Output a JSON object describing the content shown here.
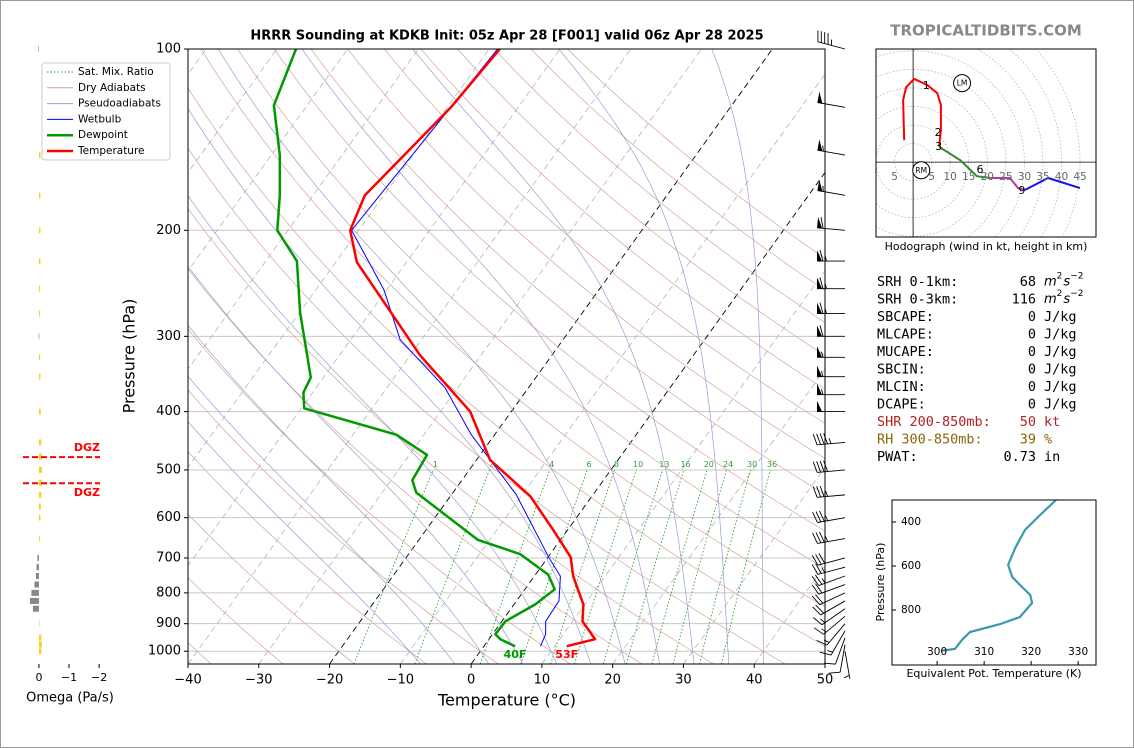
{
  "site": "TROPICALTIDBITS.COM",
  "chart_data": [
    {
      "type": "skewt",
      "title": "HRRR Sounding at KDKB Init: 05z Apr 28 [F001] valid 06z Apr 28 2025",
      "xlabel": "Temperature (°C)",
      "ylabel": "Pressure (hPa)",
      "xlim": [
        -40,
        50
      ],
      "ylim": [
        1050,
        100
      ],
      "log_y": true,
      "grid": true,
      "xticks": [
        {
          "value": -40,
          "label": "−40"
        },
        {
          "value": -30,
          "label": "−30"
        },
        {
          "value": -20,
          "label": "−20"
        },
        {
          "value": -10,
          "label": "−10"
        },
        0,
        10,
        20,
        30,
        40,
        50
      ],
      "yticks": [
        100,
        200,
        300,
        400,
        500,
        600,
        700,
        800,
        900,
        1000
      ],
      "isotherms": {
        "values": [
          -120,
          -110,
          -100,
          -90,
          -80,
          -70,
          -60,
          -50,
          -40,
          -30,
          -20,
          -10,
          0,
          10,
          20,
          30,
          40,
          50
        ],
        "highlight": [
          -20,
          0
        ],
        "color": "#aaaaaa",
        "highlight_color": "#000000"
      },
      "reference_lines": [
        {
          "name": "Sat. Mix. Ratio",
          "kind": "mixing_ratio",
          "color": "#2ca02c",
          "values": [
            1,
            2,
            4,
            6,
            8,
            10,
            13,
            16,
            20,
            24,
            30,
            36
          ]
        },
        {
          "name": "Dry Adiabats",
          "kind": "dry_adiabat",
          "color": "#d9a0a0",
          "values": [
            -40,
            -30,
            -20,
            -10,
            0,
            10,
            20,
            30,
            40,
            50,
            60,
            70,
            80,
            90,
            100,
            110,
            120,
            130,
            140,
            150,
            160
          ]
        },
        {
          "name": "Pseudoadiabats",
          "kind": "pseudoadiabat",
          "color": "#9b9bd6",
          "values": [
            -10,
            -5,
            0,
            5,
            10,
            15,
            20,
            25,
            30,
            35,
            40
          ]
        }
      ],
      "series": [
        {
          "name": "Wetbulb",
          "color": "#0000ff",
          "width": 1,
          "pressure": [
            981,
            937,
            892,
            825,
            751,
            698,
            549,
            437,
            365,
            304,
            251,
            200,
            100
          ],
          "values": [
            8.0,
            7.5,
            6.2,
            6.0,
            3.7,
            0.1,
            -10.9,
            -23.3,
            -31.8,
            -43.0,
            -50.4,
            -61.0,
            -58.8
          ]
        },
        {
          "name": "Dewpoint",
          "color": "#009a00",
          "width": 2.5,
          "pressure": [
            981,
            955,
            937,
            892,
            836,
            789,
            746,
            690,
            653,
            545,
            520,
            472,
            437,
            395,
            372,
            351,
            274,
            225,
            200,
            175,
            150,
            124,
            100
          ],
          "values": [
            4.4,
            1.6,
            0.4,
            0.5,
            3.0,
            4.2,
            1.8,
            -4.2,
            -11.7,
            -25.2,
            -27.0,
            -27.5,
            -33.9,
            -49.6,
            -51.3,
            -51.8,
            -59.9,
            -65.6,
            -71.5,
            -74.7,
            -78.8,
            -84.7,
            -87.3
          ],
          "value_labels": [
            "40F",
            null,
            null,
            null,
            null,
            null,
            null,
            null,
            null,
            null,
            null,
            null,
            null,
            null,
            null,
            null,
            null,
            null,
            null,
            null,
            null,
            null,
            null
          ]
        },
        {
          "name": "Temperature",
          "color": "#ff0000",
          "width": 2.5,
          "pressure": [
            981,
            955,
            892,
            836,
            751,
            698,
            628,
            553,
            481,
            400,
            322,
            226,
            200,
            175,
            125,
            100
          ],
          "values": [
            11.7,
            15.0,
            11.4,
            9.8,
            5.5,
            3.2,
            -2.1,
            -8.7,
            -18.1,
            -25.8,
            -38.7,
            -57.0,
            -61.2,
            -62.7,
            -59.5,
            -58.5
          ],
          "value_labels": [
            "53F",
            null,
            null,
            null,
            null,
            null,
            null,
            null,
            null,
            null,
            null,
            null,
            null,
            null,
            null,
            null
          ]
        }
      ],
      "winds": {
        "pressure": [
          1000,
          975,
          950,
          925,
          900,
          875,
          850,
          825,
          800,
          775,
          750,
          725,
          700,
          650,
          600,
          550,
          500,
          450,
          400,
          375,
          350,
          325,
          300,
          275,
          250,
          225,
          200,
          175,
          150,
          125,
          100
        ],
        "speed": [
          5,
          10,
          10,
          15,
          15,
          15,
          15,
          20,
          20,
          20,
          25,
          25,
          30,
          35,
          35,
          35,
          40,
          45,
          50,
          55,
          55,
          55,
          60,
          65,
          65,
          65,
          60,
          55,
          55,
          50,
          45
        ],
        "direction": [
          170,
          190,
          200,
          210,
          220,
          230,
          235,
          240,
          245,
          250,
          250,
          255,
          255,
          260,
          260,
          265,
          265,
          265,
          270,
          270,
          270,
          270,
          270,
          270,
          270,
          270,
          275,
          280,
          280,
          280,
          285
        ]
      }
    },
    {
      "type": "omega",
      "xlabel": "Omega (Pa/s)",
      "xlim": [
        0.53,
        -2.03
      ],
      "ylim": [
        1050,
        100
      ],
      "xticks": [
        0,
        {
          "value": -1,
          "label": "−1"
        },
        {
          "value": -2,
          "label": "−2"
        }
      ],
      "pressure": [
        100,
        150,
        175,
        200,
        225,
        250,
        275,
        300,
        325,
        350,
        400,
        450,
        475,
        500,
        525,
        550,
        575,
        600,
        650,
        700,
        725,
        750,
        775,
        800,
        825,
        850,
        900,
        950,
        975,
        1000
      ],
      "values": [
        0.02,
        -0.05,
        -0.05,
        -0.05,
        -0.05,
        -0.04,
        -0.04,
        0.01,
        -0.04,
        -0.05,
        -0.06,
        -0.08,
        -0.1,
        -0.1,
        -0.1,
        -0.08,
        -0.06,
        -0.05,
        -0.03,
        0.05,
        0.08,
        0.1,
        0.15,
        0.25,
        0.3,
        0.2,
        -0.02,
        -0.08,
        -0.1,
        -0.08
      ],
      "colors": [
        "#888888",
        "#f5d31f",
        "#f5d31f",
        "#f5d31f",
        "#f5d31f",
        "#f5d31f",
        "#f5d31f",
        "#888888",
        "#f5d31f",
        "#f5d31f",
        "#f5d31f",
        "#f5d31f",
        "#f5d31f",
        "#f5d31f",
        "#f5d31f",
        "#f5d31f",
        "#f5d31f",
        "#f5d31f",
        "#f5d31f",
        "#888888",
        "#888888",
        "#888888",
        "#888888",
        "#888888",
        "#888888",
        "#888888",
        "#f5d31f",
        "#f5d31f",
        "#f5d31f",
        "#f5d31f"
      ],
      "dgz": {
        "label": "DGZ",
        "pressure": [
          476,
          526
        ],
        "color": "#ff0000"
      }
    },
    {
      "type": "hodograph",
      "caption": "Hodograph (wind in kt, height in km)",
      "xlim": [
        -10,
        49.3
      ],
      "ylim": [
        -20.2,
        30.5
      ],
      "xticks": [
        {
          "value": -5,
          "label": "5"
        },
        5,
        10,
        15,
        20,
        25,
        30,
        35,
        40,
        45
      ],
      "series": [
        {
          "color": "#ff0000",
          "u": [
            -2.4,
            -2.7,
            -1.9,
            0.3,
            3.8,
            6.5,
            7.5,
            7.5,
            7.0
          ],
          "v": [
            5.9,
            16.7,
            20.2,
            22.4,
            20.8,
            18.6,
            15.4,
            8.6,
            4.3
          ]
        },
        {
          "color": "#2e8b2e",
          "u": [
            7.0,
            7.5,
            12.7,
            17.2,
            20.8
          ],
          "v": [
            4.3,
            3.8,
            0.5,
            -3.8,
            -4.3
          ]
        },
        {
          "color": "#b03cb0",
          "u": [
            20.8,
            26.1,
            28.3,
            30.2
          ],
          "v": [
            -4.3,
            -4.3,
            -7.0,
            -7.5
          ]
        },
        {
          "color": "#1414e6",
          "u": [
            30.2,
            36.4,
            45.0
          ],
          "v": [
            -7.5,
            -4.3,
            -7.0
          ]
        }
      ],
      "height_labels": [
        {
          "height": 1,
          "u": 3.8,
          "v": 20.8
        },
        {
          "height": 2,
          "u": 7.0,
          "v": 8.1
        },
        {
          "height": 3,
          "u": 7.2,
          "v": 4.3
        },
        {
          "height": 6,
          "u": 18.3,
          "v": -1.8
        },
        {
          "height": 9,
          "u": 29.6,
          "v": -7.5
        }
      ],
      "storm_motion": [
        {
          "label": "RM",
          "u": 2.2,
          "v": -2.2
        },
        {
          "label": "LM",
          "u": 13.2,
          "v": 21.3
        }
      ]
    },
    {
      "type": "profile",
      "xlabel": "Equivalent Pot. Temperature (K)",
      "ylabel": "Pressure (hPa)",
      "xlim": [
        290.4,
        333.8
      ],
      "ylim": [
        1050,
        300
      ],
      "xticks": [
        300,
        310,
        320,
        330
      ],
      "yticks": [
        400,
        600,
        800
      ],
      "color": "#3a9aaa",
      "pressure": [
        300,
        368,
        436,
        518,
        595,
        650,
        686,
        732,
        768,
        832,
        864,
        900,
        936,
        977,
        986
      ],
      "values": [
        325.3,
        321.9,
        318.7,
        316.6,
        315.1,
        316.0,
        317.6,
        319.8,
        320.2,
        317.6,
        313.4,
        307.0,
        305.3,
        303.8,
        300.8
      ]
    }
  ],
  "stats": {
    "rows": [
      {
        "label": "SRH 0-1km:",
        "value": 68,
        "unit_parts": [
          {
            "text": "m",
            "sup": "2"
          },
          {
            "text": "s",
            "sup": "−2"
          }
        ]
      },
      {
        "label": "SRH 0-3km:",
        "value": 116,
        "unit_parts": [
          {
            "text": "m",
            "sup": "2"
          },
          {
            "text": "s",
            "sup": "−2"
          }
        ]
      },
      {
        "label": "SBCAPE:",
        "value": 0,
        "unit": "J/kg"
      },
      {
        "label": "MLCAPE:",
        "value": 0,
        "unit": "J/kg"
      },
      {
        "label": "MUCAPE:",
        "value": 0,
        "unit": "J/kg"
      },
      {
        "label": "SBCIN:",
        "value": 0,
        "unit": "J/kg"
      },
      {
        "label": "MLCIN:",
        "value": 0,
        "unit": "J/kg"
      },
      {
        "label": "DCAPE:",
        "value": 0,
        "unit": "J/kg"
      },
      {
        "label": "SHR 200-850mb:",
        "value": 50,
        "unit": "kt",
        "color": "#b22222"
      },
      {
        "label": "RH 300-850mb:",
        "value": 39,
        "unit": "%",
        "color": "#8b6508"
      },
      {
        "label": "PWAT:",
        "value": 0.73,
        "unit": "in"
      }
    ]
  }
}
